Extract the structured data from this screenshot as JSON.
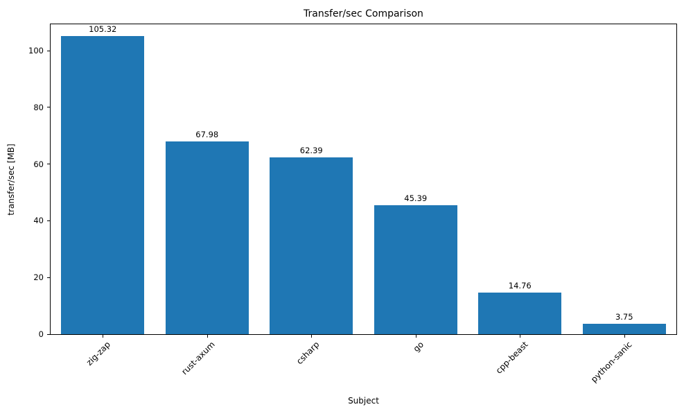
{
  "chart_data": {
    "type": "bar",
    "title": "Transfer/sec Comparison",
    "xlabel": "Subject",
    "ylabel": "transfer/sec [MB]",
    "categories": [
      "zig-zap",
      "rust-axum",
      "csharp",
      "go",
      "cpp-beast",
      "python-sanic"
    ],
    "values": [
      105.32,
      67.98,
      62.39,
      45.39,
      14.76,
      3.75
    ],
    "value_labels": [
      "105.32",
      "67.98",
      "62.39",
      "45.39",
      "14.76",
      "3.75"
    ],
    "bar_color": "#1f77b4",
    "ylim": [
      0,
      109.3
    ],
    "yticks": [
      0,
      20,
      40,
      60,
      80,
      100
    ],
    "grid": false,
    "legend_position": "none"
  }
}
